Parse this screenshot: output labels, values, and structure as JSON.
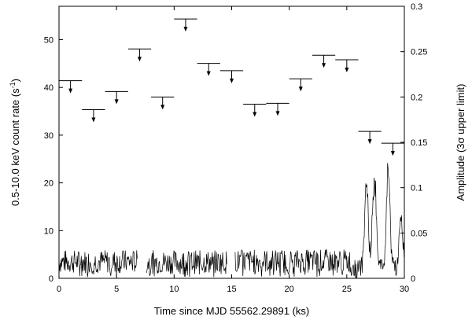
{
  "chart_data": {
    "type": "line",
    "xlabel": "Time since MJD 55562.29891 (ks)",
    "ylabel_left": "0.5-10.0 keV count rate (s",
    "ylabel_left_sup": "-1",
    "ylabel_left_close": ")",
    "ylabel_right": "Amplitude (3σ upper limit)",
    "xlim": [
      0,
      30
    ],
    "ylim_left": [
      0,
      57
    ],
    "ylim_right": [
      0,
      0.3
    ],
    "xticks": [
      0,
      5,
      10,
      15,
      20,
      25,
      30
    ],
    "xtick_labels": [
      "0",
      "5",
      "10",
      "15",
      "20",
      "25",
      "30"
    ],
    "yticks_left": [
      0,
      10,
      20,
      30,
      40,
      50
    ],
    "ytick_labels_left": [
      "0",
      "10",
      "20",
      "30",
      "40",
      "50"
    ],
    "yticks_right": [
      0,
      0.05,
      0.1,
      0.15,
      0.2,
      0.25,
      0.3
    ],
    "ytick_labels_right": [
      "0",
      "0.05",
      "0.1",
      "0.15",
      "0.2",
      "0.25",
      "0.3"
    ],
    "upper_limits": {
      "x_start": [
        0,
        2,
        4,
        6,
        8,
        10,
        12,
        14,
        16,
        18,
        20,
        22,
        24,
        26,
        28
      ],
      "x_end": [
        2,
        4,
        6,
        8,
        10,
        12,
        14,
        16,
        18,
        20,
        22,
        24,
        26,
        28,
        30
      ],
      "amplitude": [
        0.218,
        0.186,
        0.206,
        0.253,
        0.2,
        0.286,
        0.237,
        0.229,
        0.192,
        0.193,
        0.22,
        0.246,
        0.241,
        0.162,
        0.149
      ]
    },
    "light_curve": {
      "segments": [
        {
          "x_start": 0.0,
          "x_end": 6.8,
          "base": 3.5
        },
        {
          "x_start": 7.6,
          "x_end": 14.6,
          "base": 3.4
        },
        {
          "x_start": 15.3,
          "x_end": 25.3,
          "base": 3.6
        },
        {
          "x_start": 25.3,
          "x_end": 30.0,
          "base": 2.0
        }
      ],
      "flare_peaks": [
        {
          "x": 26.7,
          "y": 22.0
        },
        {
          "x": 27.4,
          "y": 23.0
        },
        {
          "x": 28.6,
          "y": 23.5
        },
        {
          "x": 29.7,
          "y": 14.0
        }
      ]
    }
  }
}
